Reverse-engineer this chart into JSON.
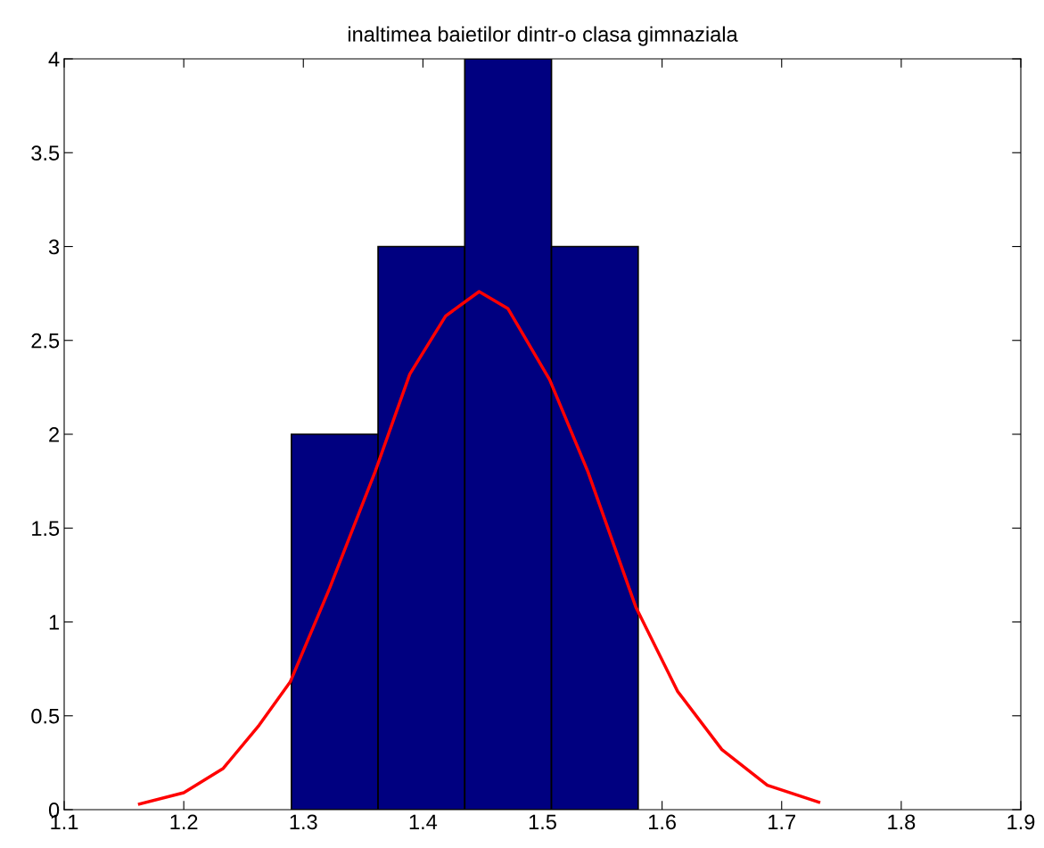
{
  "chart_data": {
    "type": "histogram",
    "title": "inaltimea baietilor dintr-o clasa gimnaziala",
    "bins": [
      1.29,
      1.3625,
      1.435,
      1.5075,
      1.58
    ],
    "values": [
      2,
      3,
      4,
      3
    ],
    "color": "#000080",
    "series": [
      {
        "type": "line",
        "color": "#ff0000",
        "x": [
          1.163,
          1.2,
          1.233,
          1.263,
          1.289,
          1.322,
          1.36,
          1.389,
          1.419,
          1.447,
          1.471,
          1.506,
          1.538,
          1.578,
          1.613,
          1.65,
          1.688,
          1.731
        ],
        "values": [
          0.03,
          0.09,
          0.22,
          0.45,
          0.68,
          1.18,
          1.8,
          2.32,
          2.63,
          2.76,
          2.67,
          2.29,
          1.8,
          1.08,
          0.63,
          0.32,
          0.13,
          0.04
        ]
      }
    ],
    "xlim": [
      1.1,
      1.9
    ],
    "xticks": [
      1.1,
      1.2,
      1.3,
      1.4,
      1.5,
      1.6,
      1.7,
      1.8,
      1.9
    ],
    "ylim": [
      0,
      4
    ],
    "yticks": [
      0,
      0.5,
      1,
      1.5,
      2,
      2.5,
      3,
      3.5,
      4
    ],
    "grid": false,
    "legend": false
  }
}
